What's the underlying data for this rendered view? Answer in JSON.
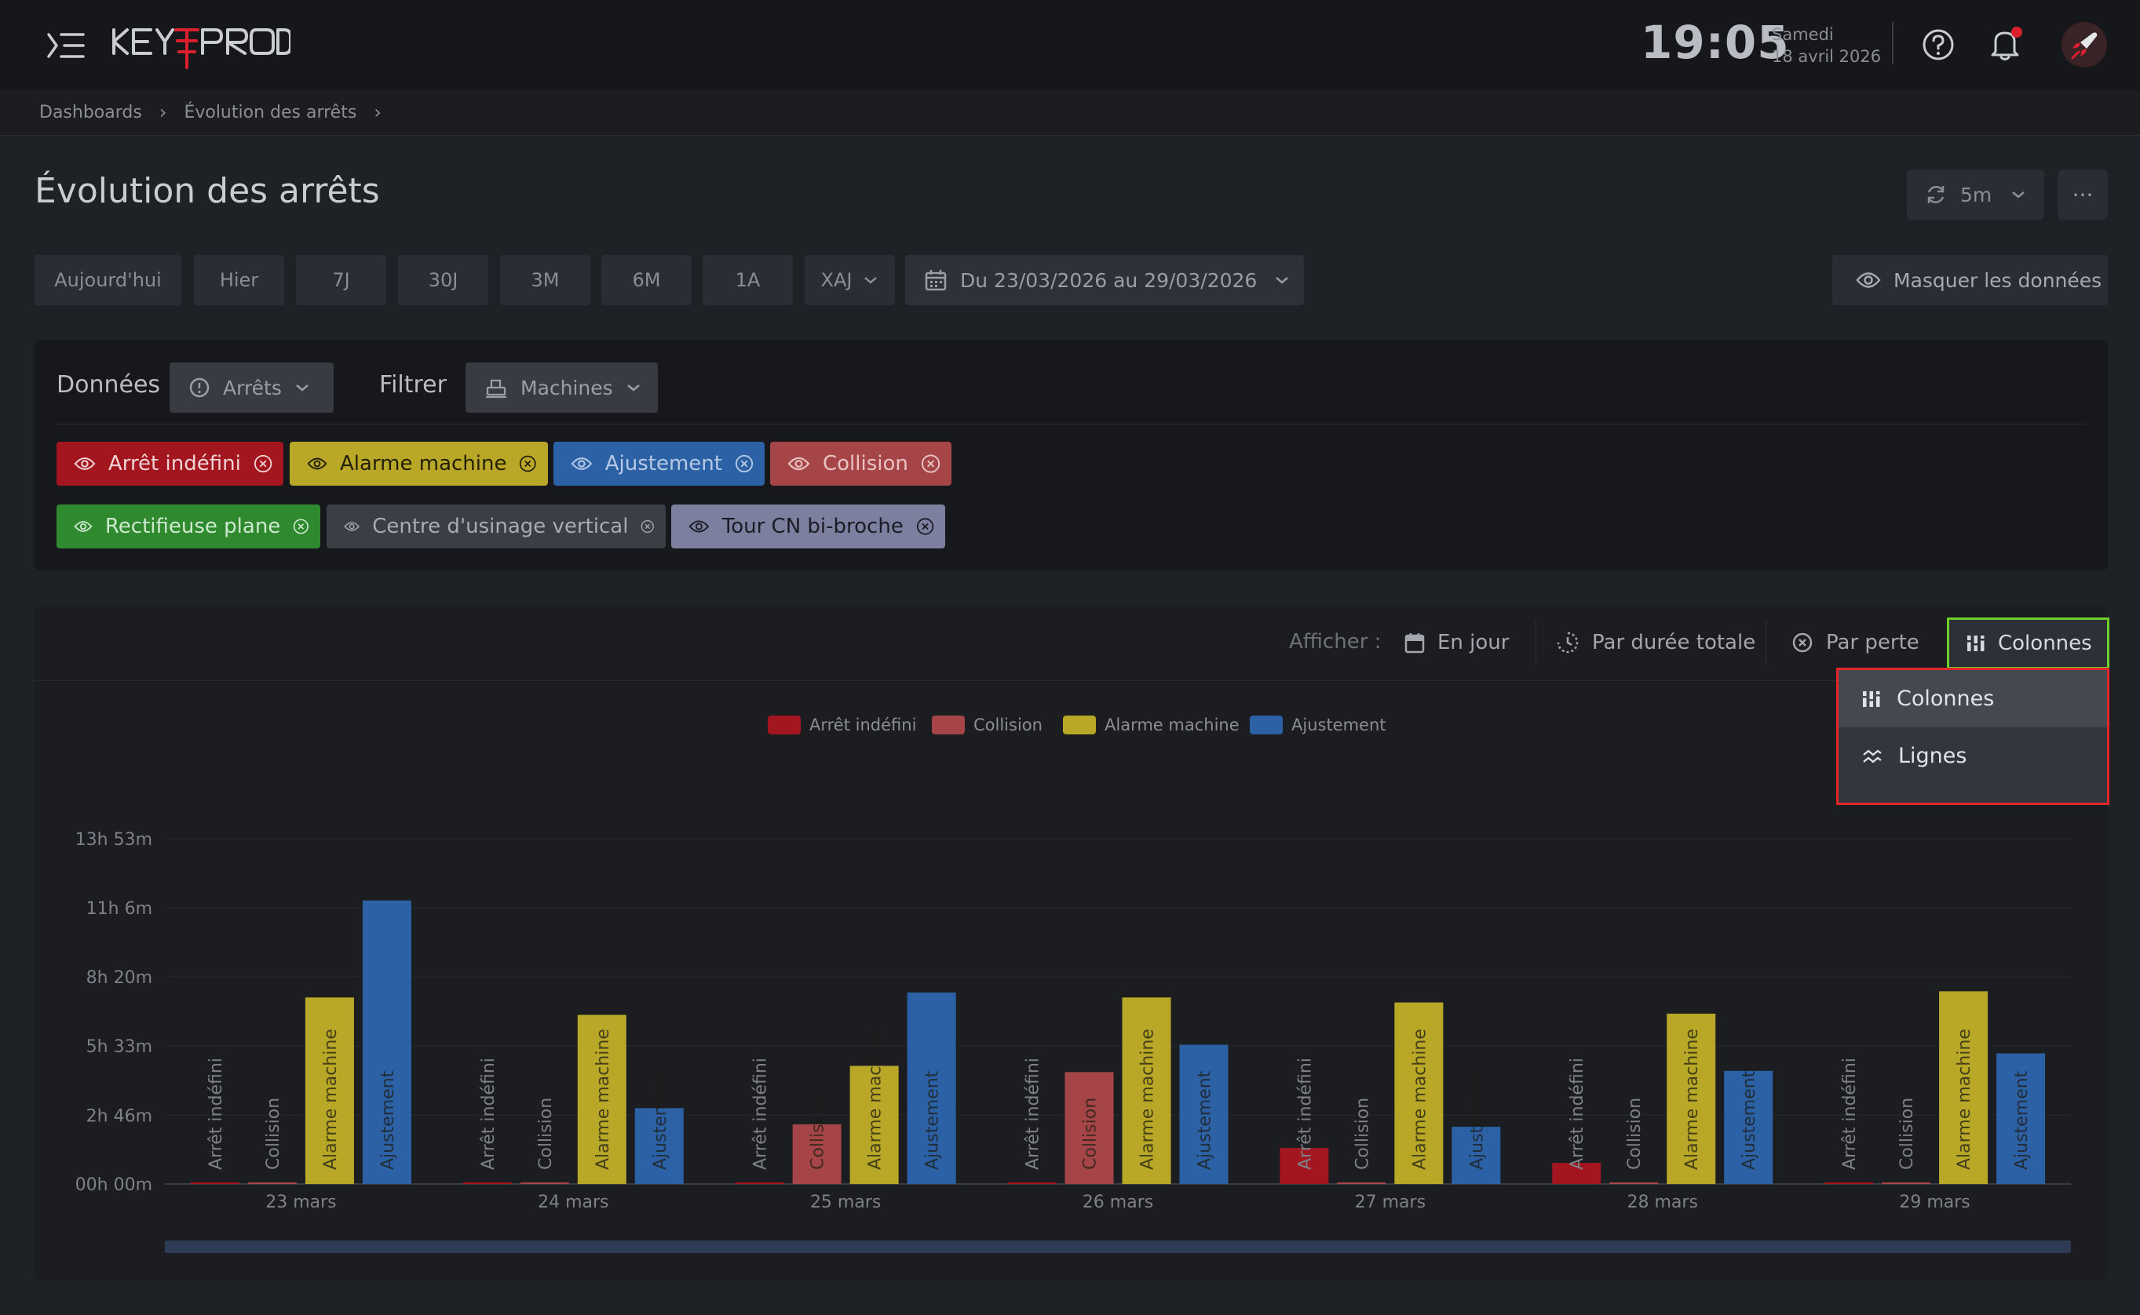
{
  "app": {
    "logo_alt": "KEYPROD"
  },
  "header": {
    "time": "19:05",
    "day": "Samedi",
    "date": "18 avril 2026"
  },
  "breadcrumb": [
    "Dashboards",
    "Évolution des arrêts"
  ],
  "page": {
    "title": "Évolution des arrêts",
    "refresh_interval": "5m",
    "more_label": "···"
  },
  "periods": [
    "Aujourd'hui",
    "Hier",
    "7J",
    "30J",
    "3M",
    "6M",
    "1A",
    "XAJ"
  ],
  "date_range": "Du 23/03/2026 au 29/03/2026",
  "hide_data_label": "Masquer les données",
  "filters": {
    "data_label": "Données",
    "data_select": "Arrêts",
    "filter_label": "Filtrer",
    "filter_select": "Machines",
    "stop_chips": [
      {
        "label": "Arrêt indéfini",
        "bg": "#a3161f",
        "fg": "#f0d3d5"
      },
      {
        "label": "Alarme machine",
        "bg": "#b9a727",
        "fg": "#231f05"
      },
      {
        "label": "Ajustement",
        "bg": "#2c61a6",
        "fg": "#b6c9e4"
      },
      {
        "label": "Collision",
        "bg": "#a64547",
        "fg": "#e9c2c3"
      }
    ],
    "machine_chips": [
      {
        "label": "Rectifieuse plane",
        "bg": "#2f8a2f",
        "fg": "#cfe9cf"
      },
      {
        "label": "Centre d'usinage vertical",
        "bg": "#3b3e44",
        "fg": "#a8acb2"
      },
      {
        "label": "Tour CN bi-broche",
        "bg": "#7c7f9e",
        "fg": "#1b1c26"
      }
    ]
  },
  "toolbar": {
    "afficher": "Afficher :",
    "en_jour": "En jour",
    "par_duree": "Par durée totale",
    "par_perte": "Par perte",
    "colonnes": "Colonnes"
  },
  "dropdown": {
    "items": [
      {
        "label": "Colonnes",
        "icon": "columns-icon",
        "active": true
      },
      {
        "label": "Lignes",
        "icon": "lines-icon",
        "active": false
      }
    ]
  },
  "chart_data": {
    "type": "bar",
    "categories": [
      "23 mars",
      "24 mars",
      "25 mars",
      "26 mars",
      "27 mars",
      "28 mars",
      "29 mars"
    ],
    "series": [
      {
        "name": "Arrêt indéfini",
        "color": "#a3161f",
        "values": [
          0.05,
          0.05,
          0.05,
          0.05,
          1.45,
          0.85,
          0.05
        ]
      },
      {
        "name": "Collision",
        "color": "#a64547",
        "values": [
          0.05,
          0.05,
          2.4,
          4.5,
          0.05,
          0.05,
          0.05
        ]
      },
      {
        "name": "Alarme machine",
        "color": "#b9a727",
        "values": [
          7.5,
          6.8,
          4.75,
          7.5,
          7.3,
          6.85,
          7.75
        ]
      },
      {
        "name": "Ajustement",
        "color": "#2c61a6",
        "values": [
          11.4,
          3.05,
          7.7,
          5.6,
          2.3,
          4.55,
          5.25
        ]
      }
    ],
    "y_ticks": [
      {
        "value": 0,
        "label": "00h 00m"
      },
      {
        "value": 2.767,
        "label": "2h 46m"
      },
      {
        "value": 5.55,
        "label": "5h 33m"
      },
      {
        "value": 8.333,
        "label": "8h 20m"
      },
      {
        "value": 11.1,
        "label": "11h 6m"
      },
      {
        "value": 13.883,
        "label": "13h 53m"
      }
    ],
    "ylim": [
      0,
      13.883
    ],
    "unit": "hours",
    "legend_position": "top-center",
    "grid": true
  }
}
